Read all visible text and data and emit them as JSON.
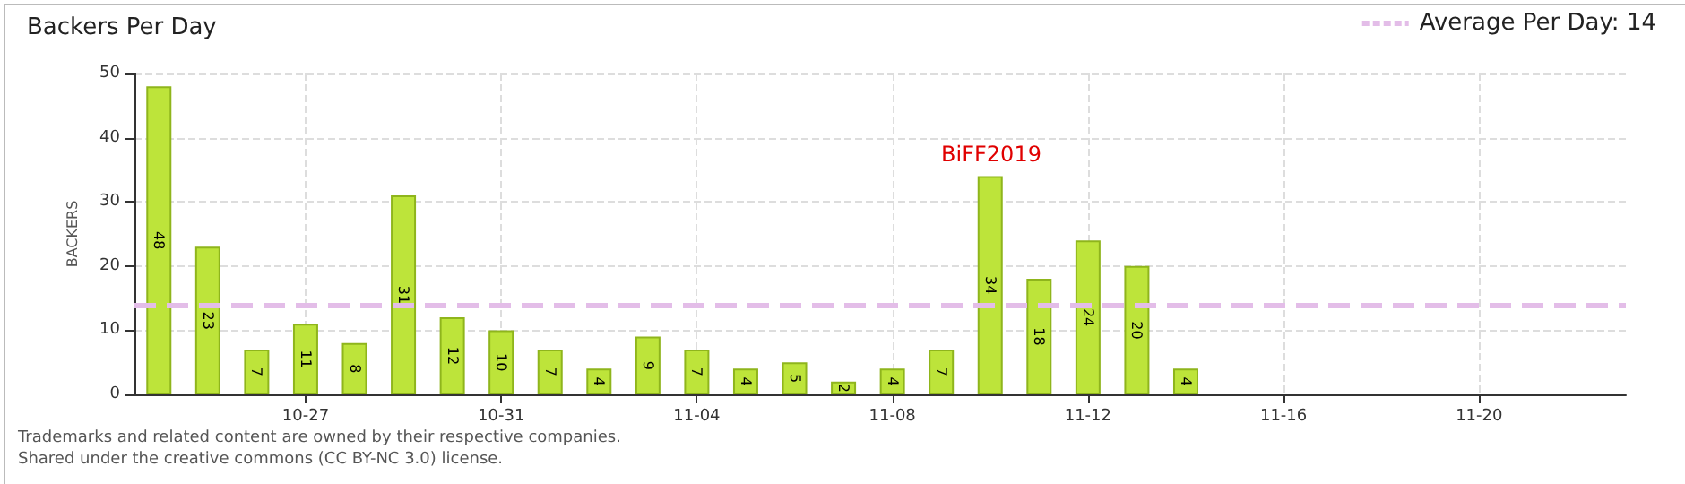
{
  "chart_data": {
    "type": "bar",
    "title": "Backers Per Day",
    "ylabel": "BACKERS",
    "x": [
      "--10-24",
      "--10-25",
      "--10-26",
      "--10-27",
      "--10-28",
      "--10-29",
      "--10-30",
      "--10-31",
      "--11-01",
      "--11-02",
      "--11-03",
      "--11-04",
      "--11-05",
      "--11-06",
      "--11-07",
      "--11-08",
      "--11-09",
      "--11-10",
      "--11-11",
      "--11-12",
      "--11-13",
      "--11-14"
    ],
    "values": [
      48,
      23,
      7,
      11,
      8,
      31,
      12,
      10,
      7,
      4,
      9,
      7,
      4,
      5,
      2,
      4,
      7,
      34,
      18,
      24,
      20,
      4
    ],
    "color": "#bde43a",
    "data_labels": true,
    "xlim": [
      "--10-23T12:00",
      "--11-23"
    ],
    "xticks": [
      {
        "value": "--10-27",
        "label": "10-27"
      },
      {
        "value": "--10-31",
        "label": "10-31"
      },
      {
        "value": "--11-04",
        "label": "11-04"
      },
      {
        "value": "--11-08",
        "label": "11-08"
      },
      {
        "value": "--11-12",
        "label": "11-12"
      },
      {
        "value": "--11-16",
        "label": "11-16"
      },
      {
        "value": "--11-20",
        "label": "11-20"
      }
    ],
    "ylim": [
      0,
      50
    ],
    "yticks": [
      0,
      10,
      20,
      30,
      40,
      50
    ],
    "grid": true,
    "ref_lines": [
      {
        "axis": "y",
        "value": 14,
        "label": "Average Per Day: 14",
        "color": "#e3bde8",
        "line_style": "dashed"
      }
    ],
    "annotations": [
      "BiFF2019",
      "Trademarks and related content are owned by their respective companies.",
      "Shared under the creative commons (CC BY-NC 3.0) license."
    ]
  }
}
